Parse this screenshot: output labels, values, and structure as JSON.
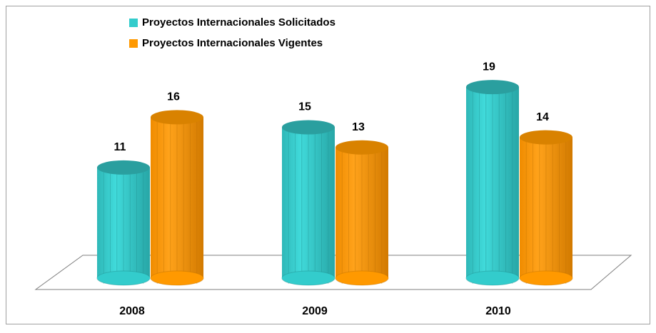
{
  "chart_data": {
    "type": "bar",
    "categories": [
      "2008",
      "2009",
      "2010"
    ],
    "series": [
      {
        "name": "Proyectos Internacionales Solicitados",
        "color": "#33cccc",
        "values": [
          11,
          15,
          19
        ]
      },
      {
        "name": "Proyectos Internacionales Vigentes",
        "color": "#ff9900",
        "values": [
          16,
          13,
          14
        ]
      }
    ],
    "legend": "top-left"
  }
}
